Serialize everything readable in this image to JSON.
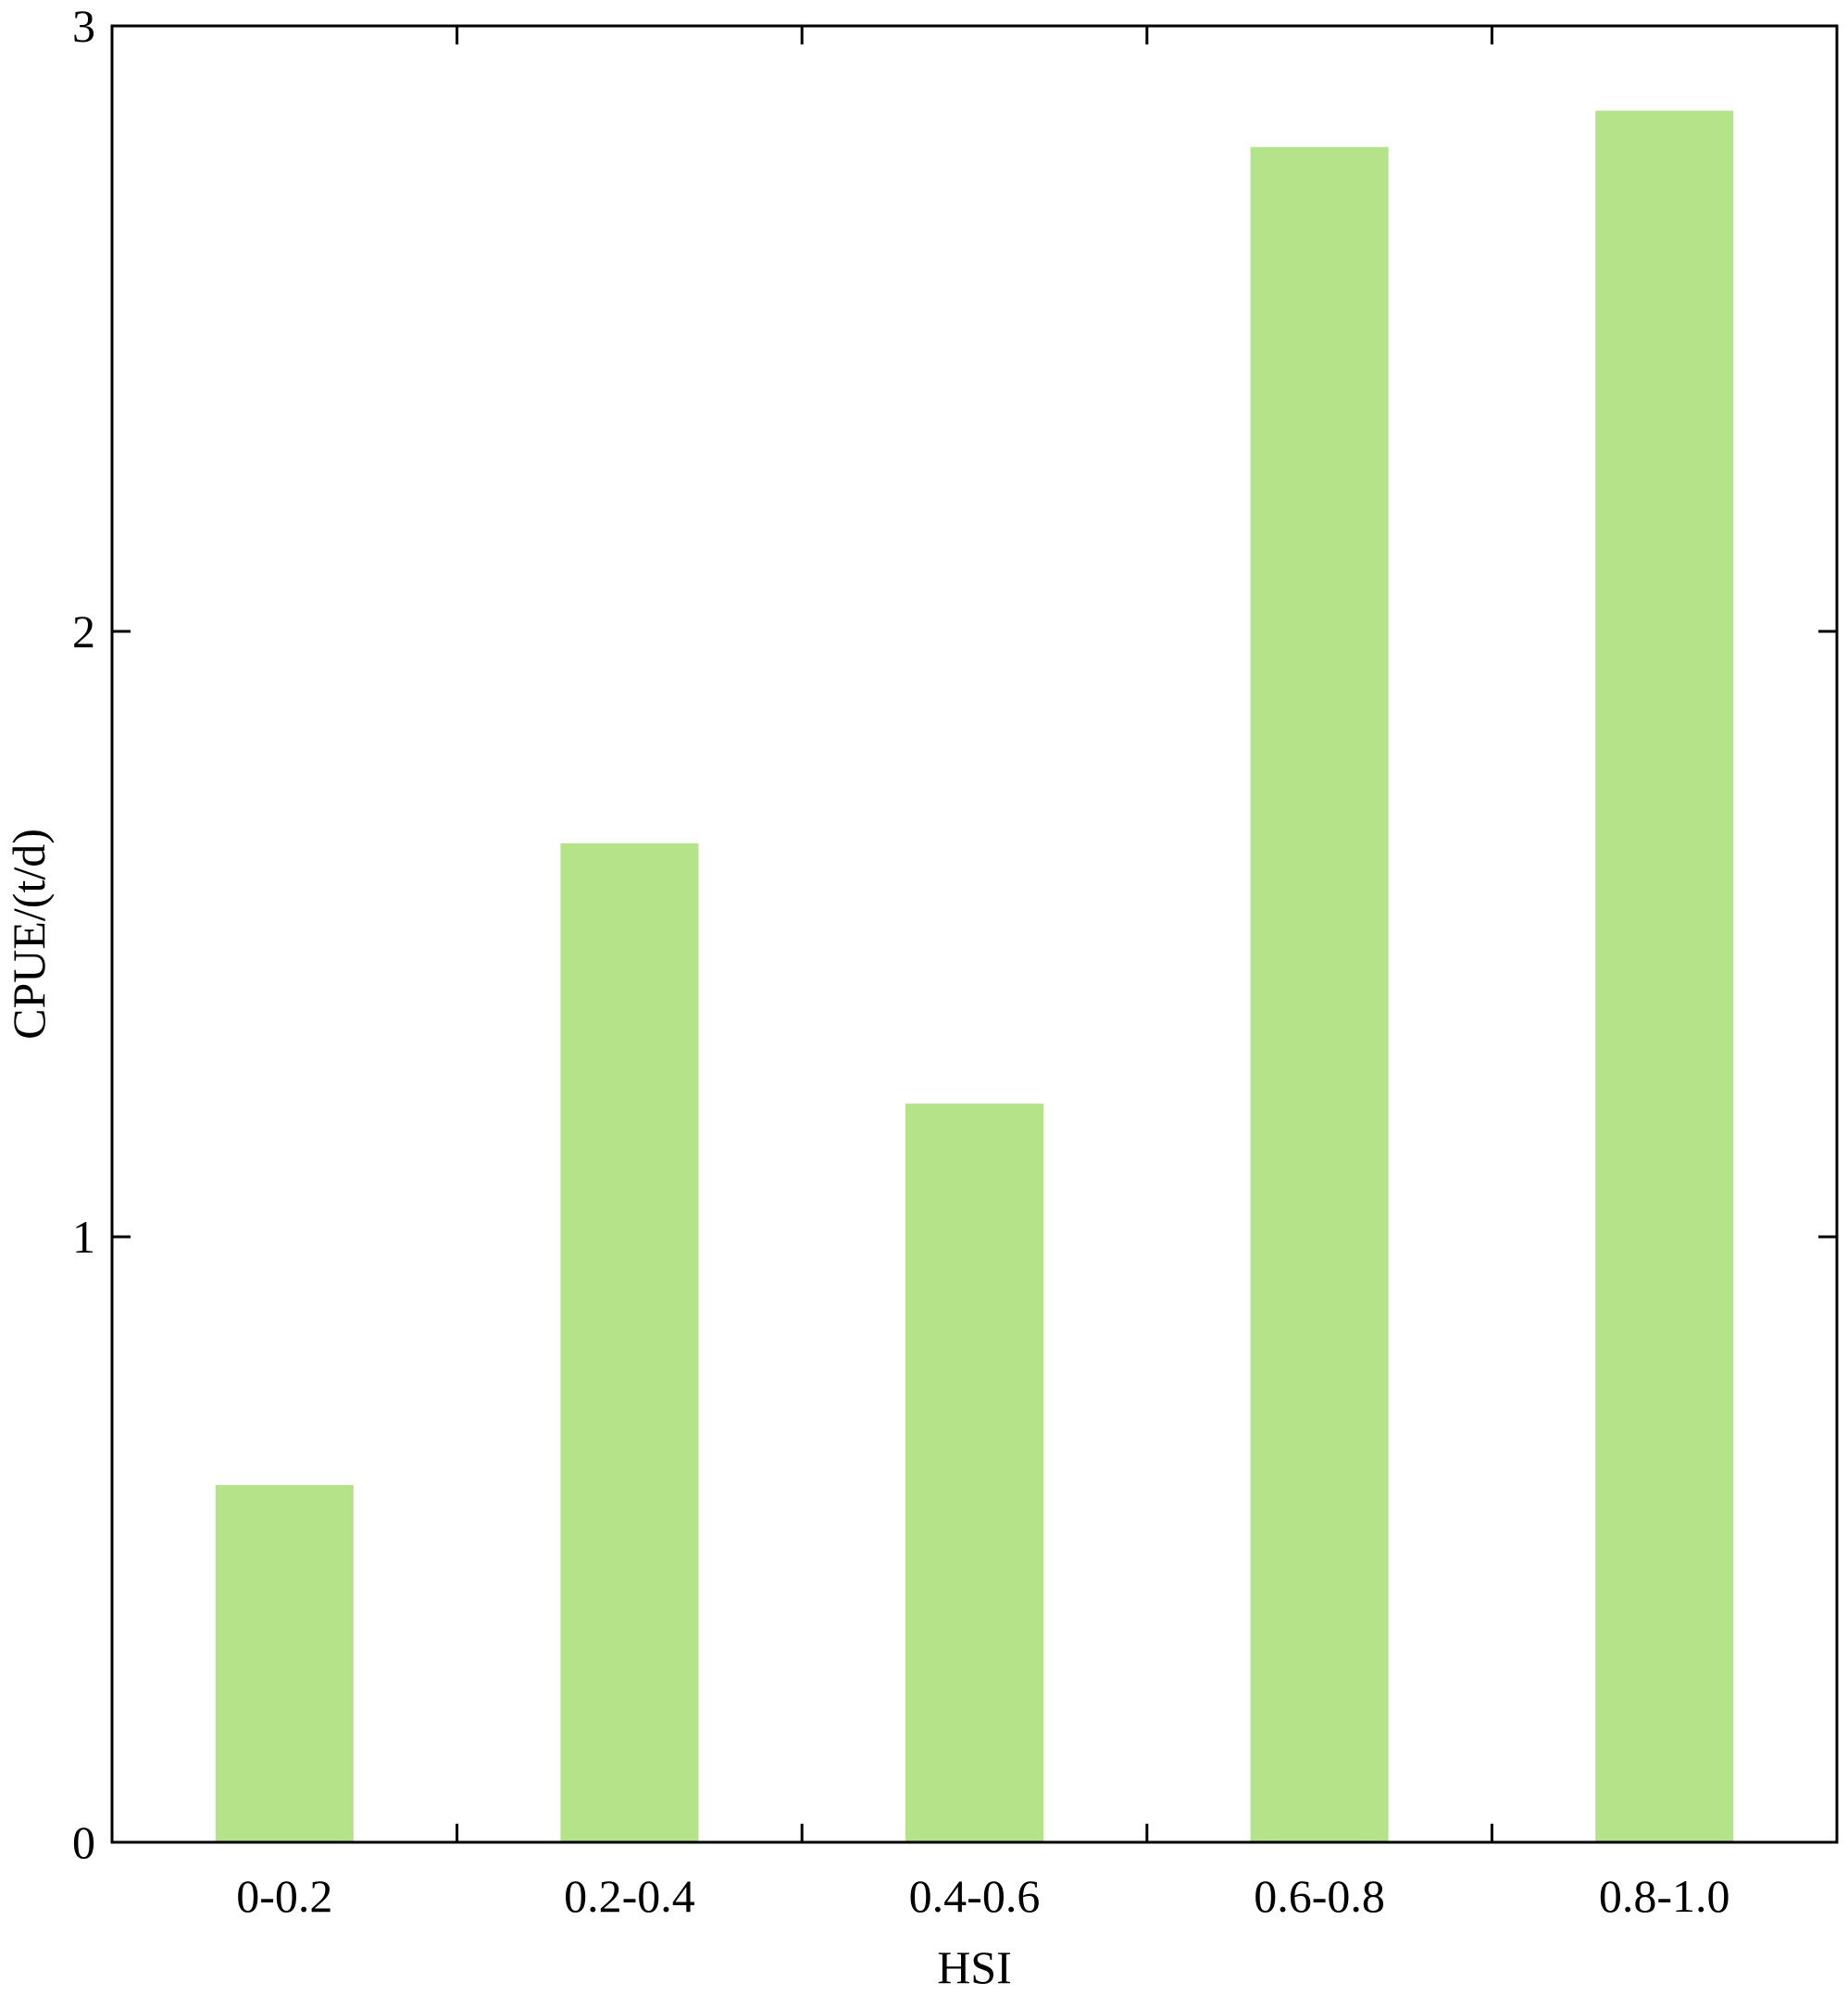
{
  "chart_data": {
    "type": "bar",
    "title": "",
    "xlabel": "HSI",
    "ylabel": "CPUE/(t/d)",
    "categories": [
      "0-0.2",
      "0.2-0.4",
      "0.4-0.6",
      "0.6-0.8",
      "0.8-1.0"
    ],
    "values": [
      0.59,
      1.65,
      1.22,
      2.8,
      2.86
    ],
    "ylim": [
      0,
      3
    ],
    "yticks": [
      0,
      1,
      2,
      3
    ],
    "grid": false,
    "bar_color": "#b5e38a",
    "axis_color": "#000000"
  }
}
